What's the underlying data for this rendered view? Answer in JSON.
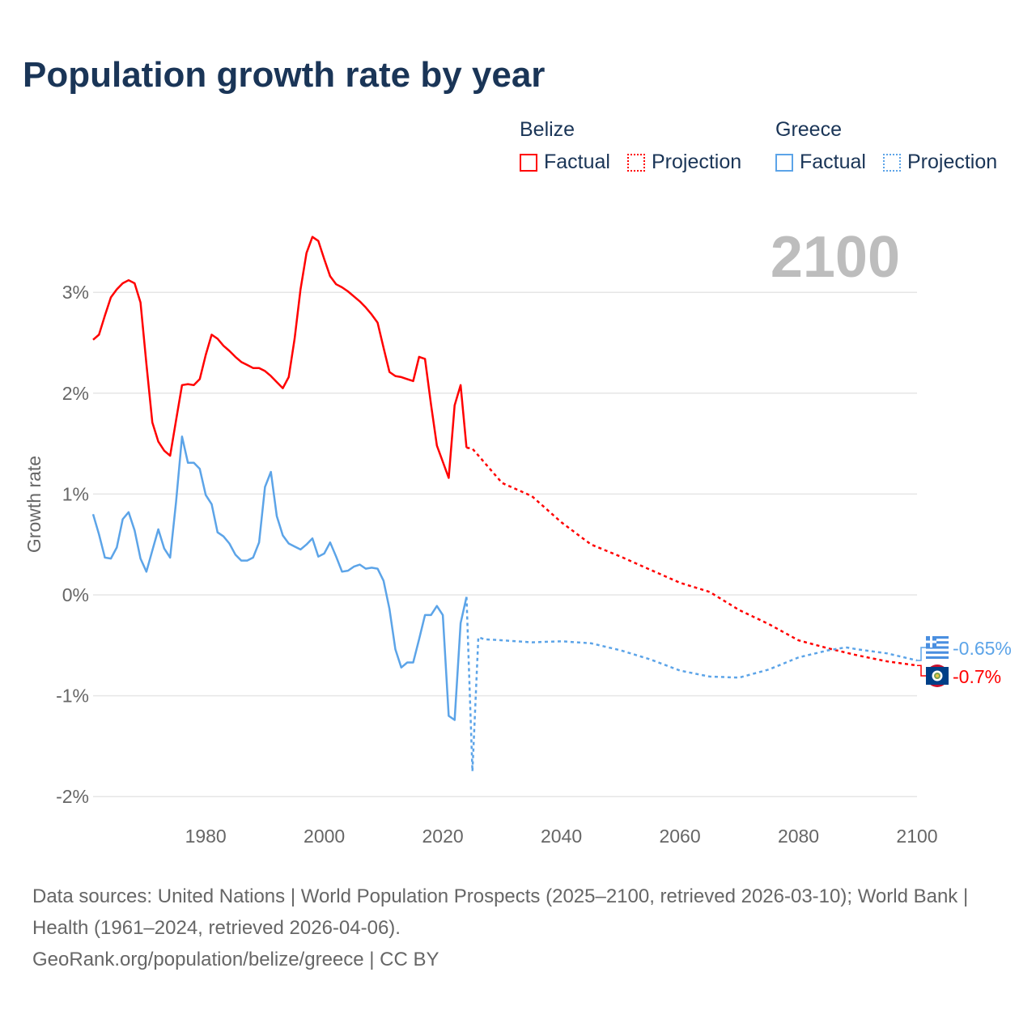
{
  "title": "Population growth rate by year",
  "legend": {
    "groups": [
      {
        "name": "Belize",
        "factual": "Factual",
        "projection": "Projection",
        "color": "#ff0000"
      },
      {
        "name": "Greece",
        "factual": "Factual",
        "projection": "Projection",
        "color": "#5ca4e8"
      }
    ]
  },
  "year_label": "2100",
  "footer": {
    "sources": "Data sources: United Nations | World Population Prospects (2025–2100, retrieved 2026-03-10); World Bank | Health (1961–2024, retrieved 2026-04-06).",
    "credit": "GeoRank.org/population/belize/greece | CC BY"
  },
  "chart_data": {
    "type": "line",
    "title": "Population growth rate by year",
    "xlabel": "",
    "ylabel": "Growth rate",
    "xlim": [
      1961,
      2100
    ],
    "ylim": [
      -2.2,
      3.6
    ],
    "x_ticks": [
      1980,
      2000,
      2020,
      2040,
      2060,
      2080,
      2100
    ],
    "y_ticks": [
      {
        "v": 3,
        "label": "3%"
      },
      {
        "v": 2,
        "label": "2%"
      },
      {
        "v": 1,
        "label": "1%"
      },
      {
        "v": 0,
        "label": "0%"
      },
      {
        "v": -1,
        "label": "-1%"
      },
      {
        "v": -2,
        "label": "-2%"
      }
    ],
    "grid": true,
    "legend_position": "top-right",
    "series": [
      {
        "name": "Belize",
        "color": "#ff0000",
        "end_label": "-0.7%",
        "factual": {
          "start_year": 1961,
          "values": [
            2.53,
            2.58,
            2.77,
            2.95,
            3.03,
            3.09,
            3.12,
            3.09,
            2.9,
            2.29,
            1.71,
            1.52,
            1.43,
            1.38,
            1.73,
            2.08,
            2.09,
            2.08,
            2.14,
            2.38,
            2.58,
            2.54,
            2.47,
            2.42,
            2.36,
            2.31,
            2.28,
            2.25,
            2.25,
            2.22,
            2.17,
            2.11,
            2.05,
            2.16,
            2.54,
            3.03,
            3.39,
            3.55,
            3.51,
            3.33,
            3.16,
            3.08,
            3.05,
            3.01,
            2.96,
            2.91,
            2.85,
            2.78,
            2.7,
            2.45,
            2.21,
            2.17,
            2.16,
            2.14,
            2.12,
            2.36,
            2.34,
            1.89,
            1.48,
            1.32,
            1.16,
            1.88,
            2.08,
            1.46
          ]
        },
        "projection": {
          "x": [
            2024,
            2025,
            2030,
            2035,
            2040,
            2045,
            2050,
            2055,
            2060,
            2065,
            2070,
            2075,
            2080,
            2085,
            2090,
            2095,
            2100
          ],
          "values": [
            1.46,
            1.45,
            1.11,
            0.98,
            0.72,
            0.5,
            0.38,
            0.25,
            0.12,
            0.03,
            -0.15,
            -0.29,
            -0.45,
            -0.53,
            -0.6,
            -0.66,
            -0.7
          ]
        }
      },
      {
        "name": "Greece",
        "color": "#5ca4e8",
        "end_label": "-0.65%",
        "factual": {
          "start_year": 1961,
          "values": [
            0.8,
            0.6,
            0.37,
            0.36,
            0.47,
            0.75,
            0.82,
            0.64,
            0.36,
            0.23,
            0.44,
            0.65,
            0.46,
            0.37,
            0.92,
            1.57,
            1.31,
            1.31,
            1.25,
            0.99,
            0.9,
            0.62,
            0.58,
            0.51,
            0.4,
            0.34,
            0.34,
            0.37,
            0.52,
            1.07,
            1.22,
            0.78,
            0.59,
            0.51,
            0.48,
            0.45,
            0.5,
            0.56,
            0.38,
            0.41,
            0.52,
            0.38,
            0.23,
            0.24,
            0.28,
            0.3,
            0.26,
            0.27,
            0.26,
            0.14,
            -0.14,
            -0.54,
            -0.72,
            -0.67,
            -0.67,
            -0.44,
            -0.2,
            -0.2,
            -0.11,
            -0.2,
            -1.2,
            -1.24,
            -0.28,
            -0.02
          ]
        },
        "projection": {
          "x": [
            2024,
            2025,
            2026,
            2027,
            2030,
            2035,
            2040,
            2045,
            2050,
            2055,
            2060,
            2065,
            2070,
            2075,
            2080,
            2085,
            2088,
            2090,
            2095,
            2100
          ],
          "values": [
            -0.02,
            -1.75,
            -0.42,
            -0.44,
            -0.45,
            -0.47,
            -0.46,
            -0.48,
            -0.55,
            -0.64,
            -0.75,
            -0.81,
            -0.82,
            -0.74,
            -0.62,
            -0.55,
            -0.52,
            -0.54,
            -0.58,
            -0.65
          ]
        }
      }
    ]
  }
}
